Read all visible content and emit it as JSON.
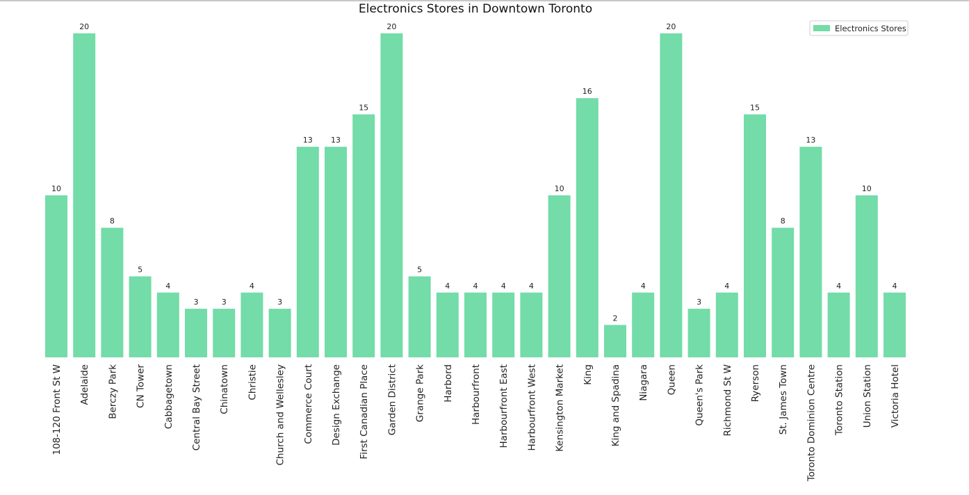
{
  "chart_data": {
    "type": "bar",
    "title": "Electronics Stores in Downtown Toronto",
    "xlabel": "",
    "ylabel": "",
    "ylim": [
      0,
      20
    ],
    "grid": false,
    "legend_position": "top-right",
    "categories": [
      "108-120 Front St W",
      "Adelaide",
      "Berczy Park",
      "CN Tower",
      "Cabbagetown",
      "Central Bay Street",
      "Chinatown",
      "Christie",
      "Church and Wellesley",
      "Commerce Court",
      "Design Exchange",
      "First Canadian Place",
      "Garden District",
      "Grange Park",
      "Harbord",
      "Harbourfront",
      "Harbourfront East",
      "Harbourfront West",
      "Kensington Market",
      "King",
      "King and Spadina",
      "Niagara",
      "Queen",
      "Queen's Park",
      "Richmond St W",
      "Ryerson",
      "St. James Town",
      "Toronto Dominion Centre",
      "Toronto Station",
      "Union Station",
      "Victoria Hotel"
    ],
    "series": [
      {
        "name": "Electronics Stores",
        "color": "#73dca8",
        "values": [
          10,
          20,
          8,
          5,
          4,
          3,
          3,
          4,
          3,
          13,
          13,
          15,
          20,
          5,
          4,
          4,
          4,
          4,
          10,
          16,
          2,
          4,
          20,
          3,
          4,
          15,
          8,
          13,
          4,
          10,
          4
        ]
      }
    ]
  }
}
